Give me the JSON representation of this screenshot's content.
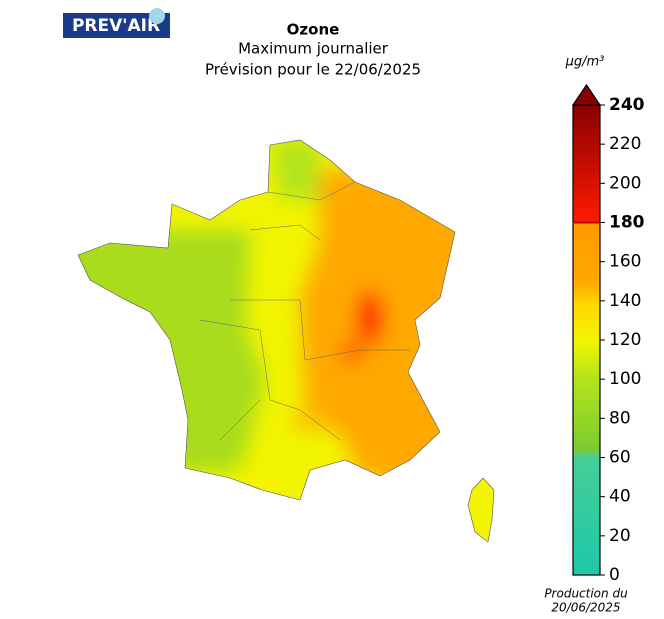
{
  "logo": "PREV'AIR",
  "header": {
    "title": "Ozone",
    "subtitle": "Maximum journalier",
    "forecast": "Prévision pour le 22/06/2025"
  },
  "colorbar": {
    "unit": "µg/m³",
    "lim": [
      0,
      240
    ],
    "ticks": [
      0,
      20,
      40,
      60,
      80,
      100,
      120,
      140,
      160,
      180,
      200,
      220,
      240
    ],
    "bold_ticks": [
      180,
      240
    ],
    "threshold": 180,
    "stops": [
      {
        "value": 0,
        "color": "#1ec8a8"
      },
      {
        "value": 60,
        "color": "#45cf98"
      },
      {
        "value": 64,
        "color": "#7ccc2e"
      },
      {
        "value": 100,
        "color": "#b4e41c"
      },
      {
        "value": 120,
        "color": "#f2f400"
      },
      {
        "value": 138,
        "color": "#ffd800"
      },
      {
        "value": 150,
        "color": "#ffa800"
      },
      {
        "value": 180,
        "color": "#ff9a00"
      },
      {
        "value": 180,
        "color": "#ff1a00"
      },
      {
        "value": 240,
        "color": "#8a0000"
      }
    ]
  },
  "footer": {
    "line1": "Production du",
    "line2": "20/06/2025"
  }
}
